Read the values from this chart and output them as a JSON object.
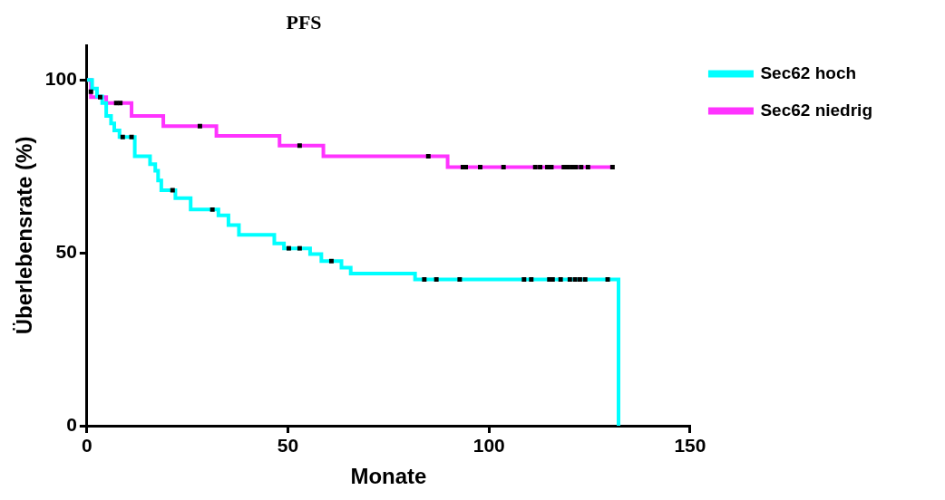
{
  "chart_data": {
    "type": "step",
    "title": "PFS",
    "xlabel": "Monate",
    "ylabel": "Überlebensrate (%)",
    "xlim": [
      0,
      150
    ],
    "xticks": [
      0,
      50,
      100,
      150
    ],
    "ylim": [
      0,
      110
    ],
    "yticks": [
      0,
      50,
      100
    ],
    "grid": false,
    "legend": "right",
    "series": [
      {
        "name": "Sec62 hoch",
        "color": "#00ffff",
        "marker": "none",
        "x": [
          0,
          1.3,
          2.5,
          3.8,
          4.8,
          6,
          6.8,
          8.1,
          11.9,
          15.7,
          17,
          17.7,
          18.5,
          22,
          25.8,
          32.7,
          35.2,
          37.8,
          46.6,
          49,
          55.5,
          58.3,
          63.3,
          65.6,
          81.6,
          132.2
        ],
        "values": [
          100,
          97.5,
          95.2,
          93.3,
          89.6,
          87.4,
          85.4,
          83.5,
          77.9,
          75.6,
          73.7,
          70.9,
          68.1,
          65.8,
          62.5,
          60.8,
          58,
          55.2,
          52.7,
          51.3,
          49.6,
          47.6,
          45.7,
          44,
          42.3,
          0
        ]
      },
      {
        "name": "Sec62 niedrig",
        "color": "#ff33ff",
        "marker": "none",
        "x": [
          0,
          1,
          4.8,
          11.1,
          19,
          32.2,
          47.9,
          58.8,
          89.7,
          130.7
        ],
        "values": [
          100,
          95,
          93.3,
          89.6,
          86.6,
          83.8,
          81,
          77.9,
          74.8,
          74.8
        ]
      },
      {
        "type": "scatter",
        "color": "#000000",
        "marker": "square",
        "x": [
          8.9,
          11.1,
          21.3,
          31.2,
          50.2,
          52.9,
          60.8,
          83.9,
          86.9,
          92.7,
          108.7,
          110.5,
          115,
          115.8,
          117.8,
          120.1,
          121.4,
          122.6,
          123.9,
          129.5
        ],
        "values": [
          83.5,
          83.5,
          68.1,
          62.5,
          51.3,
          51.3,
          47.6,
          42.3,
          42.3,
          42.3,
          42.3,
          42.3,
          42.3,
          42.3,
          42.3,
          42.3,
          42.3,
          42.3,
          42.3,
          42.3
        ]
      },
      {
        "type": "scatter",
        "color": "#000000",
        "marker": "square",
        "x": [
          1,
          3.3,
          7.3,
          8.3,
          28.1,
          52.9,
          84.9,
          93.5,
          94.2,
          97.8,
          103.6,
          111.5,
          112.7,
          114.5,
          115.5,
          118.6,
          119.6,
          120.6,
          121.6,
          122.9,
          124.6,
          130.7
        ],
        "values": [
          96.6,
          95,
          93.3,
          93.3,
          86.6,
          81,
          77.9,
          74.8,
          74.8,
          74.8,
          74.8,
          74.8,
          74.8,
          74.8,
          74.8,
          74.8,
          74.8,
          74.8,
          74.8,
          74.8,
          74.8,
          74.8
        ]
      }
    ]
  }
}
